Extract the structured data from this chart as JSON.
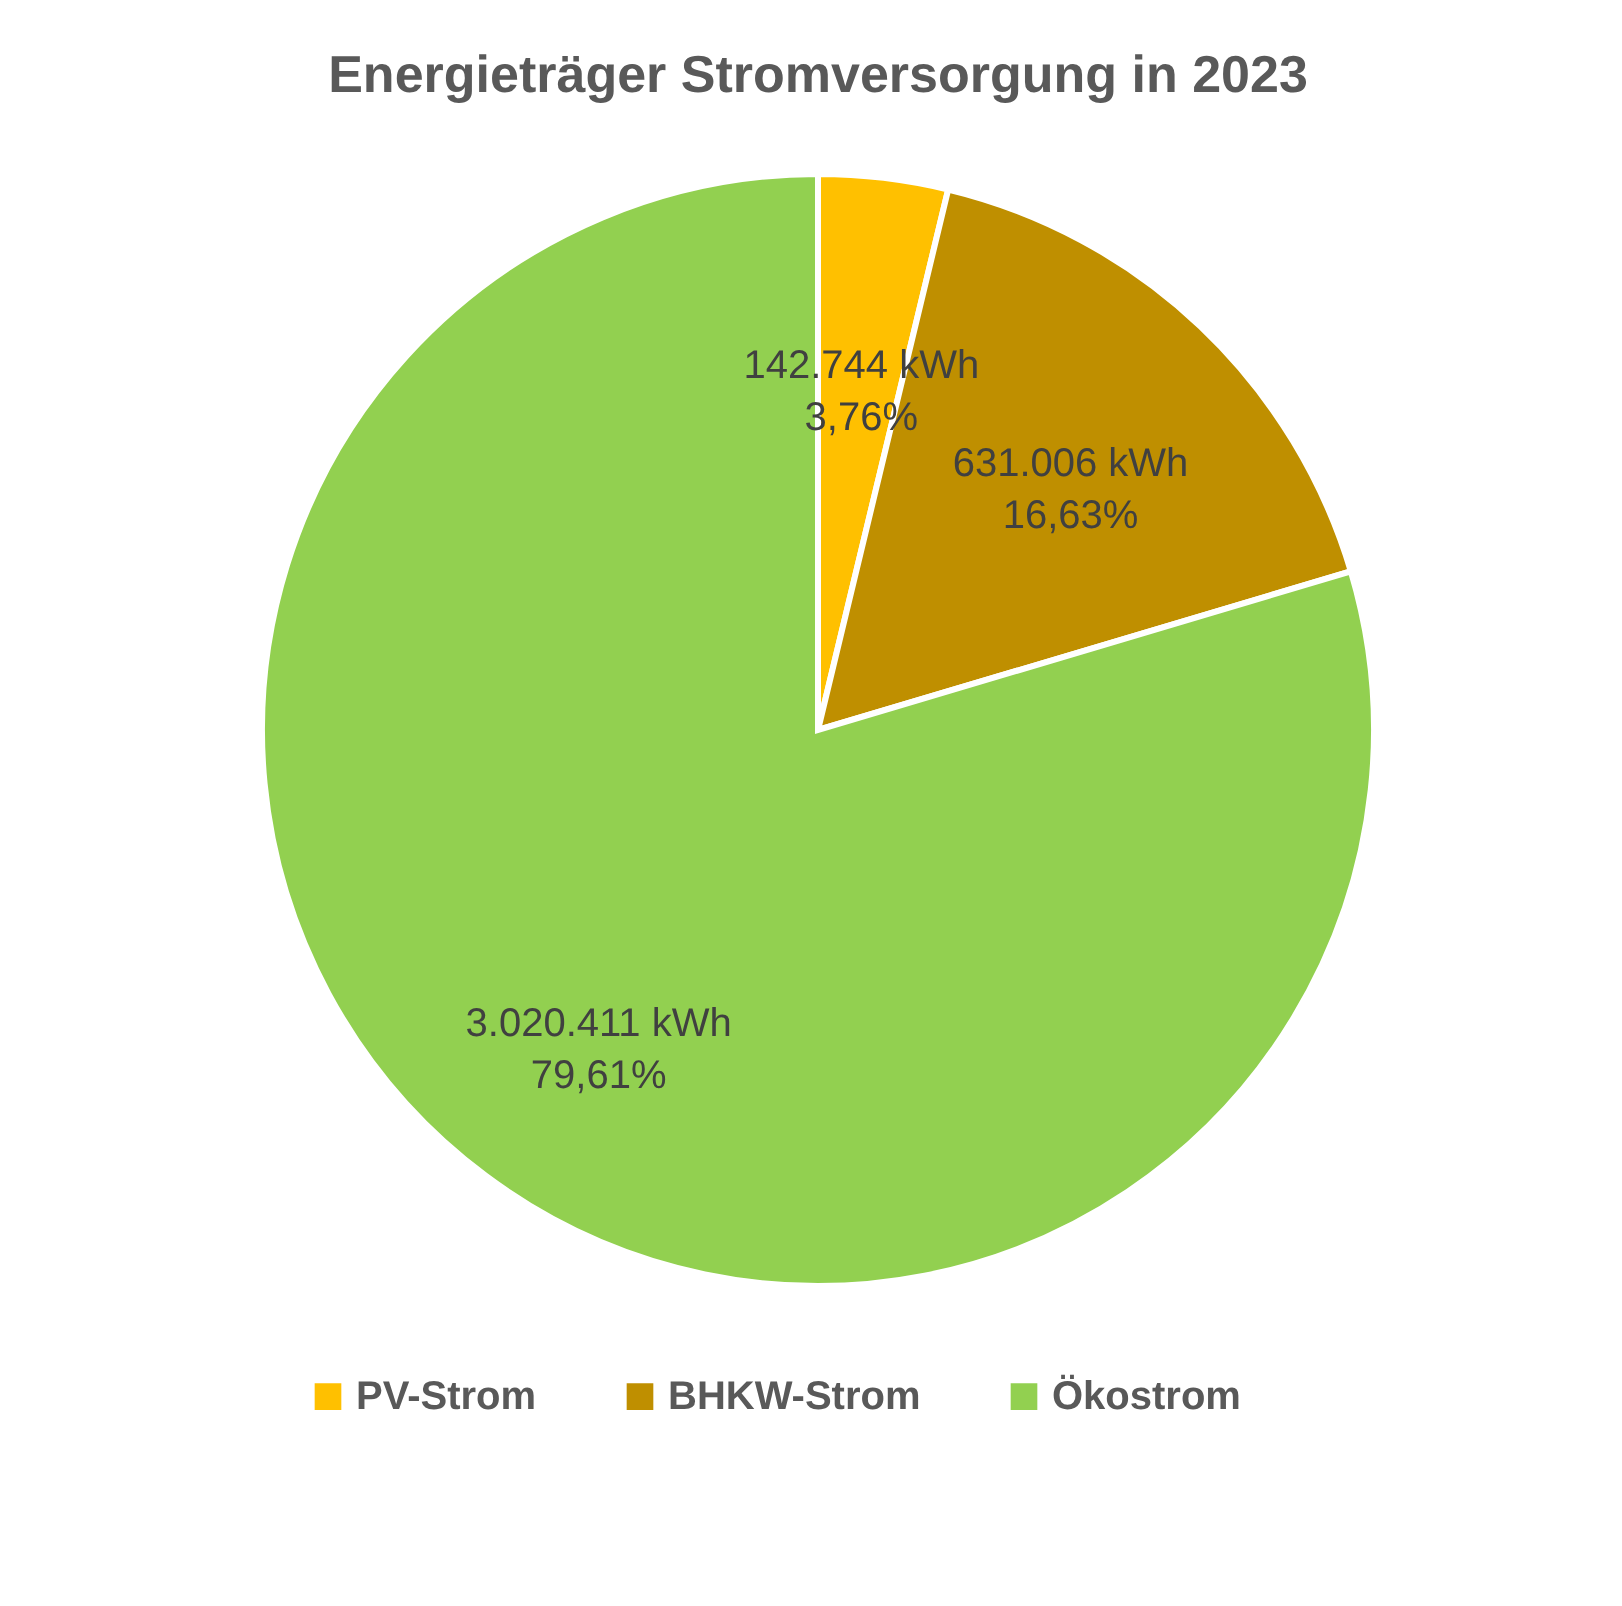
{
  "chart_data": {
    "type": "pie",
    "title": "Energieträger Stromversorgung in 2023",
    "categories": [
      "PV-Strom",
      "BHKW-Strom",
      "Ökostrom"
    ],
    "values": [
      142744,
      631006,
      3020411
    ],
    "colors": [
      "#ffc000",
      "#bf8f00",
      "#92d050"
    ],
    "value_labels": [
      "142.744 kWh\n3,76%",
      "631.006 kWh\n16,63%",
      "3.020.411 kWh\n79,61%"
    ],
    "legend": "bottom"
  }
}
